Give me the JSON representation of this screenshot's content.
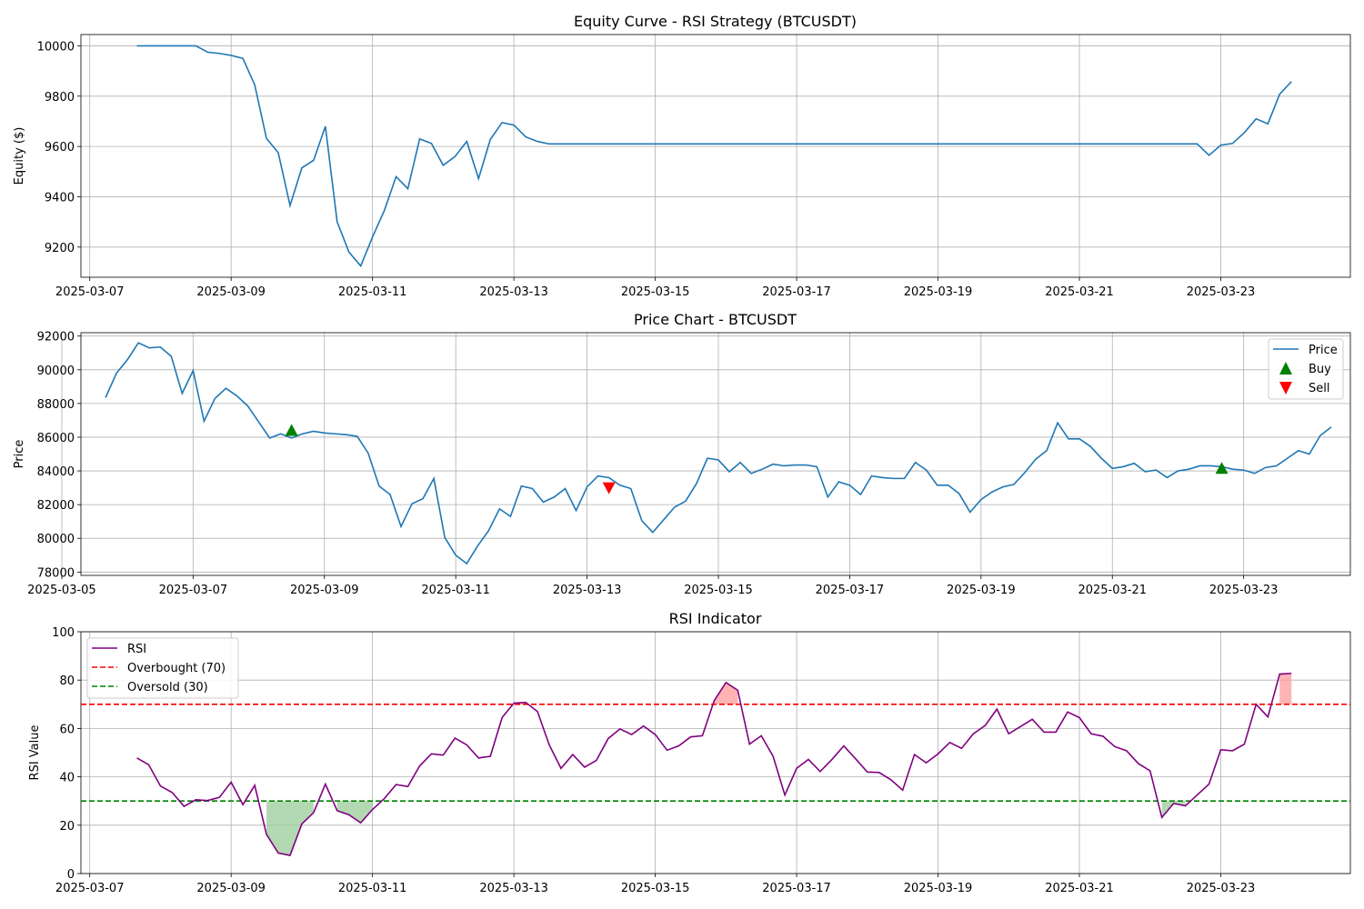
{
  "colors": {
    "line": "#1f77b4",
    "rsi": "#800080",
    "overbought": "#ff0000",
    "oversold": "#008000",
    "buy": "#008000",
    "sell": "#ff0000",
    "grid": "#b0b0b0",
    "fill_overbought": "#ff9999",
    "fill_oversold": "#99cc99"
  },
  "chart_data": [
    {
      "type": "line",
      "title": "Equity Curve - RSI Strategy (BTCUSDT)",
      "xlabel": "",
      "ylabel": "Equity ($)",
      "xlim": [
        "2025-03-06 21:00",
        "2025-03-24 20:00"
      ],
      "ylim": [
        9080,
        10045
      ],
      "grid": true,
      "xticks": [
        "2025-03-07",
        "2025-03-09",
        "2025-03-11",
        "2025-03-13",
        "2025-03-15",
        "2025-03-17",
        "2025-03-19",
        "2025-03-21",
        "2025-03-23"
      ],
      "yticks": [
        9200,
        9400,
        9600,
        9800,
        10000
      ],
      "series": [
        {
          "values": [
            [
              "2025-03-07 16:00",
              10000
            ],
            [
              "2025-03-08 12:00",
              10000
            ],
            [
              "2025-03-08 16:00",
              9975
            ],
            [
              "2025-03-08 20:00",
              9970
            ],
            [
              "2025-03-09 00:00",
              9962
            ],
            [
              "2025-03-09 04:00",
              9950
            ],
            [
              "2025-03-09 08:00",
              9845
            ],
            [
              "2025-03-09 12:00",
              9632
            ],
            [
              "2025-03-09 16:00",
              9575
            ],
            [
              "2025-03-09 20:00",
              9365
            ],
            [
              "2025-03-10 00:00",
              9515
            ],
            [
              "2025-03-10 04:00",
              9545
            ],
            [
              "2025-03-10 08:00",
              9680
            ],
            [
              "2025-03-10 12:00",
              9300
            ],
            [
              "2025-03-10 16:00",
              9180
            ],
            [
              "2025-03-10 20:00",
              9125
            ],
            [
              "2025-03-11 00:00",
              9240
            ],
            [
              "2025-03-11 04:00",
              9345
            ],
            [
              "2025-03-11 08:00",
              9480
            ],
            [
              "2025-03-11 12:00",
              9432
            ],
            [
              "2025-03-11 16:00",
              9630
            ],
            [
              "2025-03-11 20:00",
              9612
            ],
            [
              "2025-03-12 00:00",
              9525
            ],
            [
              "2025-03-12 04:00",
              9560
            ],
            [
              "2025-03-12 08:00",
              9620
            ],
            [
              "2025-03-12 12:00",
              9472
            ],
            [
              "2025-03-12 16:00",
              9628
            ],
            [
              "2025-03-12 20:00",
              9695
            ],
            [
              "2025-03-13 00:00",
              9685
            ],
            [
              "2025-03-13 04:00",
              9638
            ],
            [
              "2025-03-13 08:00",
              9620
            ],
            [
              "2025-03-13 12:00",
              9610
            ],
            [
              "2025-03-22 16:00",
              9610
            ],
            [
              "2025-03-22 20:00",
              9565
            ],
            [
              "2025-03-23 00:00",
              9605
            ],
            [
              "2025-03-23 04:00",
              9612
            ],
            [
              "2025-03-23 08:00",
              9655
            ],
            [
              "2025-03-23 12:00",
              9710
            ],
            [
              "2025-03-23 16:00",
              9690
            ],
            [
              "2025-03-23 20:00",
              9808
            ],
            [
              "2025-03-24 00:00",
              9858
            ]
          ]
        }
      ]
    },
    {
      "type": "line",
      "title": "Price Chart - BTCUSDT",
      "xlabel": "",
      "ylabel": "Price",
      "xlim": [
        "2025-03-05 07:00",
        "2025-03-24 15:00"
      ],
      "ylim": [
        77800,
        92200
      ],
      "grid": true,
      "xticks": [
        "2025-03-05",
        "2025-03-07",
        "2025-03-09",
        "2025-03-11",
        "2025-03-13",
        "2025-03-15",
        "2025-03-17",
        "2025-03-19",
        "2025-03-21",
        "2025-03-23"
      ],
      "yticks": [
        78000,
        80000,
        82000,
        84000,
        86000,
        88000,
        90000,
        92000
      ],
      "legend_position": "top-right",
      "legend": [
        "Price",
        "Buy",
        "Sell"
      ],
      "series": [
        {
          "name": "Price",
          "values": [
            88350,
            89800,
            90600,
            91600,
            91300,
            91350,
            90800,
            88600,
            89950,
            86950,
            88300,
            88900,
            88450,
            87850,
            86900,
            85950,
            86200,
            85950,
            86200,
            86350,
            86250,
            86200,
            86150,
            86050,
            85050,
            83100,
            82600,
            80700,
            82050,
            82350,
            83550,
            80050,
            79000,
            78500,
            79550,
            80450,
            81750,
            81300,
            83100,
            82950,
            82150,
            82450,
            82950,
            81650,
            83050,
            83700,
            83600,
            83150,
            82950,
            81050,
            80350,
            81100,
            81850,
            82200,
            83250,
            84750,
            84650,
            83950,
            84500,
            83850,
            84100,
            84400,
            84300,
            84350,
            84350,
            84250,
            82450,
            83350,
            83150,
            82600,
            83700,
            83600,
            83550,
            83550,
            84500,
            84050,
            83150,
            83150,
            82650,
            81550,
            82300,
            82750,
            83050,
            83200,
            83900,
            84700,
            85200,
            86850,
            85900,
            85900,
            85450,
            84750,
            84150,
            84250,
            84450,
            83950,
            84050,
            83600,
            84000,
            84100,
            84300,
            84300,
            84250,
            84100,
            84050,
            83850,
            84200,
            84300,
            84750,
            85200,
            85000,
            86100,
            86600
          ],
          "x_start": "2025-03-05 16:00",
          "x_step_hours": 4
        },
        {
          "name": "Buy",
          "points": [
            [
              "2025-03-08 12:00",
              86350
            ],
            [
              "2025-03-22 16:00",
              84100
            ]
          ]
        },
        {
          "name": "Sell",
          "points": [
            [
              "2025-03-13 08:00",
              83050
            ]
          ]
        }
      ]
    },
    {
      "type": "line",
      "title": "RSI Indicator",
      "xlabel": "",
      "ylabel": "RSI Value",
      "xlim": [
        "2025-03-06 21:00",
        "2025-03-24 20:00"
      ],
      "ylim": [
        0,
        100
      ],
      "grid": true,
      "xticks": [
        "2025-03-07",
        "2025-03-09",
        "2025-03-11",
        "2025-03-13",
        "2025-03-15",
        "2025-03-17",
        "2025-03-19",
        "2025-03-21",
        "2025-03-23"
      ],
      "yticks": [
        0,
        20,
        40,
        60,
        80,
        100
      ],
      "legend_position": "top-left",
      "legend": [
        "RSI",
        "Overbought (70)",
        "Oversold (30)"
      ],
      "overbought": 70,
      "oversold": 30,
      "series": [
        {
          "name": "RSI",
          "x_start": "2025-03-07 16:00",
          "x_step_hours": 4,
          "values": [
            47.8,
            45,
            36.2,
            33.5,
            27.8,
            30.5,
            30.2,
            31.5,
            37.8,
            28.5,
            36.5,
            16.2,
            8.5,
            7.5,
            20.5,
            25.2,
            37,
            26,
            24.3,
            21,
            26.5,
            31,
            36.8,
            36,
            44.5,
            49.5,
            49,
            56,
            53.2,
            47.8,
            48.5,
            64.5,
            70.5,
            70.8,
            67,
            53.2,
            43.5,
            49.2,
            44,
            46.8,
            55.8,
            59.8,
            57.5,
            61,
            57.5,
            51,
            52.8,
            56.5,
            57,
            71.5,
            79,
            75.8,
            53.5,
            57,
            48.5,
            32.5,
            43.5,
            47.2,
            42.2,
            47.2,
            52.8,
            47.5,
            42,
            41.8,
            38.8,
            34.5,
            49.2,
            45.8,
            49.5,
            54.2,
            51.8,
            57.8,
            61.2,
            68,
            57.8,
            60.8,
            63.8,
            58.5,
            58.5,
            66.8,
            64.5,
            57.8,
            56.8,
            52.5,
            50.8,
            45.5,
            42.5,
            23.2,
            29,
            28,
            32.5,
            37,
            51.2,
            50.8,
            53.5,
            70,
            64.8,
            82.5,
            82.8
          ]
        }
      ]
    }
  ]
}
